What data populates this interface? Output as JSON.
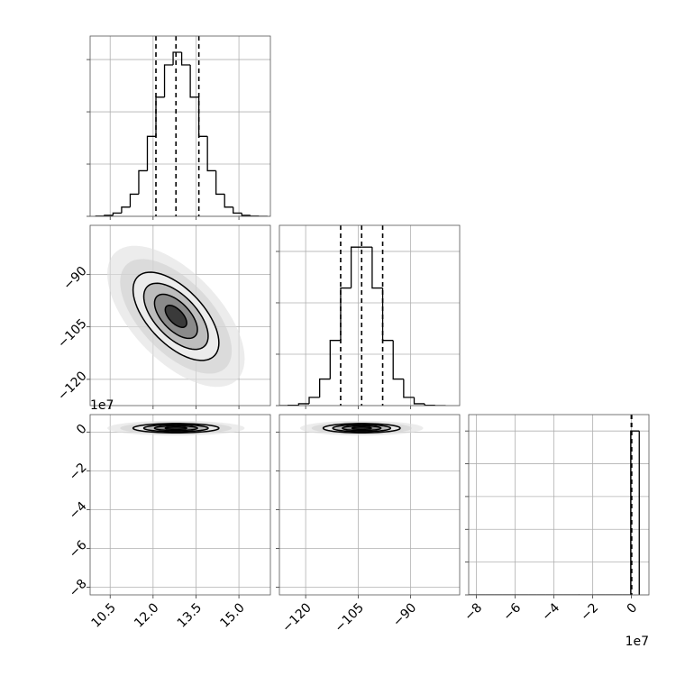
{
  "chart_data": [
    {
      "type": "hist",
      "bins": [
        10.0,
        10.3,
        10.6,
        10.9,
        11.2,
        11.5,
        11.8,
        12.1,
        12.4,
        12.7,
        13.0,
        13.3,
        13.6,
        13.9,
        14.2,
        14.5,
        14.8,
        15.1,
        15.4,
        15.7,
        16.0
      ],
      "counts": [
        2,
        9,
        31,
        88,
        212,
        436,
        765,
        1140,
        1449,
        1570,
        1449,
        1140,
        765,
        436,
        212,
        88,
        31,
        9,
        2,
        0
      ],
      "quantiles": [
        12.1,
        12.8,
        13.6
      ],
      "xlim": [
        9.8,
        16.1
      ],
      "xticks": [
        10.5,
        12,
        13.5,
        15
      ],
      "ylim": [
        0,
        1725
      ],
      "yticks": [
        0,
        500,
        1000,
        1500
      ],
      "color": "#000000",
      "grid": true
    },
    {
      "type": "hist2d",
      "center": [
        12.8,
        -102
      ],
      "sigma": [
        0.75,
        6.3
      ],
      "correlation": -0.6,
      "levels": [
        0.5,
        1,
        1.5,
        2
      ],
      "xlim": [
        9.8,
        16.1
      ],
      "xticks": [
        10.5,
        12,
        13.5,
        15
      ],
      "ylim": [
        -127.5,
        -76
      ],
      "yticks": [
        {
          "value": -90,
          "label": "−90"
        },
        {
          "value": -105,
          "label": "−105"
        },
        {
          "value": -120,
          "label": "−120"
        }
      ],
      "color": "#000000",
      "grid": true
    },
    {
      "type": "hist",
      "bins": [
        -128,
        -125,
        -122,
        -119,
        -116,
        -113,
        -110,
        -107,
        -104,
        -101,
        -98,
        -95,
        -92,
        -89,
        -86,
        -83,
        -80
      ],
      "counts": [
        0,
        3,
        18,
        80,
        258,
        634,
        1144,
        1542,
        1542,
        1144,
        634,
        258,
        80,
        18,
        3,
        0
      ],
      "quantiles": [
        -110,
        -104,
        -98
      ],
      "xlim": [
        -127.5,
        -76
      ],
      "xticks": [
        -120,
        -105,
        -90
      ],
      "ylim": [
        0,
        1754
      ],
      "yticks": [
        0,
        500,
        1000,
        1500
      ],
      "color": "#000000",
      "grid": true
    },
    {
      "type": "hist2d",
      "center": [
        12.8,
        2000000
      ],
      "sigma": [
        0.75,
        1200000
      ],
      "correlation": 0,
      "levels": [
        0.5,
        1,
        1.5,
        2
      ],
      "xlim": [
        9.8,
        16.1
      ],
      "xticks": [
        10.5,
        {
          "value": 12,
          "label": "12.0"
        },
        13.5,
        {
          "value": 15,
          "label": "15.0"
        }
      ],
      "ylim": [
        -84000000,
        9000000
      ],
      "yticks": [
        {
          "value": -80000000,
          "label": "−8"
        },
        {
          "value": -60000000,
          "label": "−6"
        },
        {
          "value": -40000000,
          "label": "−4"
        },
        {
          "value": -20000000,
          "label": "−2"
        },
        0
      ],
      "y_offset_label": "1e7",
      "color": "#000000",
      "grid": true
    },
    {
      "type": "hist2d",
      "center": [
        -104,
        2000000
      ],
      "sigma": [
        5.5,
        1200000
      ],
      "correlation": 0,
      "levels": [
        0.5,
        1,
        1.5,
        2
      ],
      "xlim": [
        -127.5,
        -76
      ],
      "xticks": [
        {
          "value": -120,
          "label": "−120"
        },
        {
          "value": -105,
          "label": "−105"
        },
        {
          "value": -90,
          "label": "−90"
        }
      ],
      "ylim": [
        -84000000,
        9000000
      ],
      "yticks": [
        -80000000,
        -60000000,
        -40000000,
        -20000000,
        0
      ],
      "color": "#000000",
      "grid": true
    },
    {
      "type": "hist",
      "bins": [
        -84000000,
        -79600000,
        -75200000,
        -70800000,
        -66400000,
        -62000000,
        -57600000,
        -53200000,
        -48800000,
        -44400000,
        -40000000,
        -35600000,
        -31200000,
        -26800000,
        -22400000,
        -18000000,
        -13600000,
        -9200000,
        -4800000,
        -400000,
        4000000
      ],
      "counts": [
        0,
        0,
        0,
        0,
        0,
        0,
        0,
        0,
        0,
        0,
        0,
        0,
        0,
        1,
        0,
        0,
        0,
        0,
        0,
        9999
      ],
      "quantiles": [
        -100000,
        0,
        100000
      ],
      "xlim": [
        -84000000,
        9000000
      ],
      "xticks": [
        {
          "value": -80000000,
          "label": "−8"
        },
        {
          "value": -60000000,
          "label": "−6"
        },
        {
          "value": -40000000,
          "label": "−4"
        },
        {
          "value": -20000000,
          "label": "−2"
        },
        0
      ],
      "x_offset_label": "1e7",
      "ylim": [
        0,
        11000
      ],
      "yticks": [
        0,
        2000,
        4000,
        6000,
        8000,
        10000
      ],
      "color": "#000000",
      "grid": true
    }
  ]
}
